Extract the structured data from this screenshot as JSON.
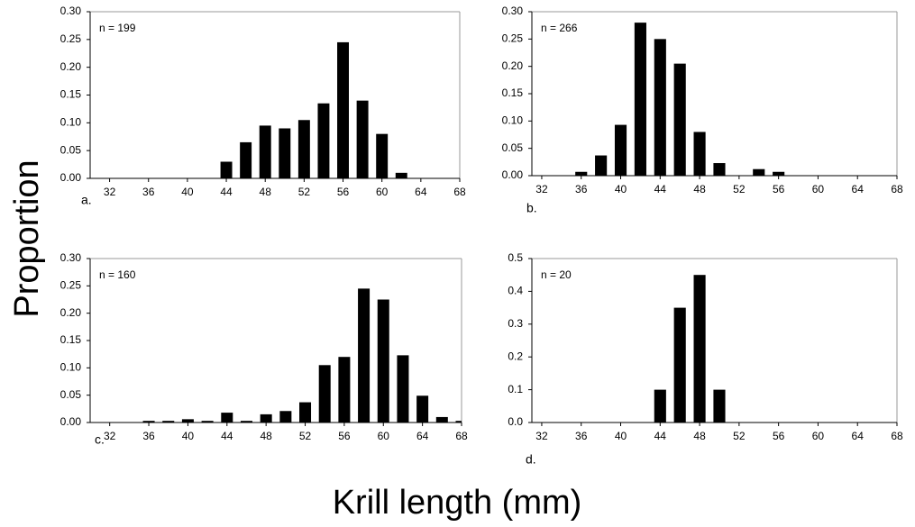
{
  "ylabel": "Proportion",
  "xlabel": "Krill length (mm)",
  "chart_data": [
    {
      "type": "bar",
      "annotation": "n = 199",
      "panel_label": "a.",
      "x": [
        32,
        34,
        36,
        38,
        40,
        42,
        44,
        46,
        48,
        50,
        52,
        54,
        56,
        58,
        60,
        62,
        64,
        66,
        68
      ],
      "values": [
        0,
        0,
        0,
        0,
        0,
        0,
        0.03,
        0.065,
        0.095,
        0.09,
        0.105,
        0.135,
        0.245,
        0.14,
        0.08,
        0.01,
        0,
        0,
        0
      ],
      "color": "#000000",
      "xlim": [
        30,
        68
      ],
      "xticks": [
        32,
        36,
        40,
        44,
        48,
        52,
        56,
        60,
        64,
        68
      ],
      "ylim": [
        0,
        0.3
      ],
      "yticks": [
        {
          "value": 0,
          "label": "0.00"
        },
        0.05,
        {
          "value": 0.1,
          "label": "0.10"
        },
        0.15,
        {
          "value": 0.2,
          "label": "0.20"
        },
        0.25,
        {
          "value": 0.3,
          "label": "0.30"
        }
      ]
    },
    {
      "type": "bar",
      "annotation": "n = 266",
      "panel_label": "b.",
      "x": [
        32,
        34,
        36,
        38,
        40,
        42,
        44,
        46,
        48,
        50,
        52,
        54,
        56,
        58,
        60,
        62,
        64,
        66,
        68
      ],
      "values": [
        0,
        0,
        0.007,
        0.037,
        0.093,
        0.28,
        0.25,
        0.205,
        0.08,
        0.023,
        0,
        0.012,
        0.007,
        0,
        0,
        0,
        0,
        0,
        0
      ],
      "color": "#000000",
      "xlim": [
        31,
        68
      ],
      "xticks": [
        32,
        36,
        40,
        44,
        48,
        52,
        56,
        60,
        64,
        68
      ],
      "ylim": [
        0,
        0.3
      ],
      "yticks": [
        {
          "value": 0,
          "label": "0.00"
        },
        0.05,
        {
          "value": 0.1,
          "label": "0.10"
        },
        0.15,
        {
          "value": 0.2,
          "label": "0.20"
        },
        0.25,
        {
          "value": 0.3,
          "label": "0.30"
        }
      ]
    },
    {
      "type": "bar",
      "annotation": "n = 160",
      "panel_label": "c.",
      "x": [
        32,
        34,
        36,
        38,
        40,
        42,
        44,
        46,
        48,
        50,
        52,
        54,
        56,
        58,
        60,
        62,
        64,
        66,
        68
      ],
      "values": [
        0,
        0,
        0.003,
        0.003,
        0.006,
        0.003,
        0.018,
        0.003,
        0.015,
        0.021,
        0.037,
        0.105,
        0.12,
        0.245,
        0.225,
        0.123,
        0.049,
        0.01,
        0.003
      ],
      "color": "#000000",
      "xlim": [
        30,
        68
      ],
      "xticks": [
        32,
        36,
        40,
        44,
        48,
        52,
        56,
        60,
        64,
        68
      ],
      "ylim": [
        0,
        0.3
      ],
      "yticks": [
        {
          "value": 0,
          "label": "0.00"
        },
        0.05,
        {
          "value": 0.1,
          "label": "0.10"
        },
        0.15,
        {
          "value": 0.2,
          "label": "0.20"
        },
        0.25,
        {
          "value": 0.3,
          "label": "0.30"
        }
      ]
    },
    {
      "type": "bar",
      "annotation": "n = 20",
      "panel_label": "d.",
      "x": [
        32,
        34,
        36,
        38,
        40,
        42,
        44,
        46,
        48,
        50,
        52,
        54,
        56,
        58,
        60,
        62,
        64,
        66,
        68
      ],
      "values": [
        0,
        0,
        0,
        0,
        0,
        0,
        0.1,
        0.35,
        0.45,
        0.1,
        0,
        0,
        0,
        0,
        0,
        0,
        0,
        0,
        0
      ],
      "color": "#000000",
      "xlim": [
        31,
        68
      ],
      "xticks": [
        32,
        36,
        40,
        44,
        48,
        52,
        56,
        60,
        64,
        68
      ],
      "ylim": [
        0,
        0.5
      ],
      "yticks": [
        {
          "value": 0,
          "label": "0.0"
        },
        0.1,
        0.2,
        0.3,
        0.4,
        0.5
      ]
    }
  ]
}
